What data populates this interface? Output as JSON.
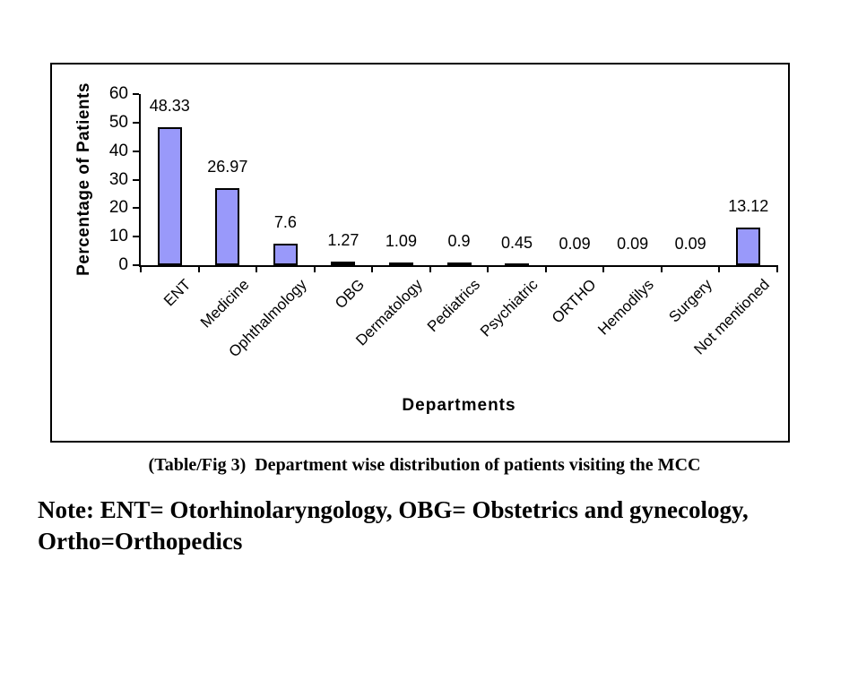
{
  "figure": {
    "caption": "(Table/Fig 3)  Department wise distribution of patients visiting the MCC",
    "note": "Note: ENT= Otorhinolaryngology, OBG= Obstetrics and gynecology, Ortho=Orthopedics"
  },
  "chart_data": {
    "type": "bar",
    "title": "",
    "xlabel": "Departments",
    "ylabel": "Percentage of Patients",
    "categories": [
      "ENT",
      "Medicine",
      "Ophthalmology",
      "OBG",
      "Dermatology",
      "Pediatrics",
      "Psychiatric",
      "ORTHO",
      "Hemodilys",
      "Surgery",
      "Not mentioned"
    ],
    "values": [
      48.33,
      26.97,
      7.6,
      1.27,
      1.09,
      0.9,
      0.45,
      0.09,
      0.09,
      0.09,
      13.12
    ],
    "data_labels": [
      "48.33",
      "26.97",
      "7.6",
      "1.27",
      "1.09",
      "0.9",
      "0.45",
      "0.09",
      "0.09",
      "0.09",
      "13.12"
    ],
    "ylim": [
      0,
      60
    ],
    "yticks": [
      0,
      10,
      20,
      30,
      40,
      50,
      60
    ],
    "grid": false,
    "legend": false,
    "bar_color": "#9999FA",
    "bar_border_color": "#000000",
    "axis_color": "#000000",
    "category_label_rotation_deg": 45
  }
}
